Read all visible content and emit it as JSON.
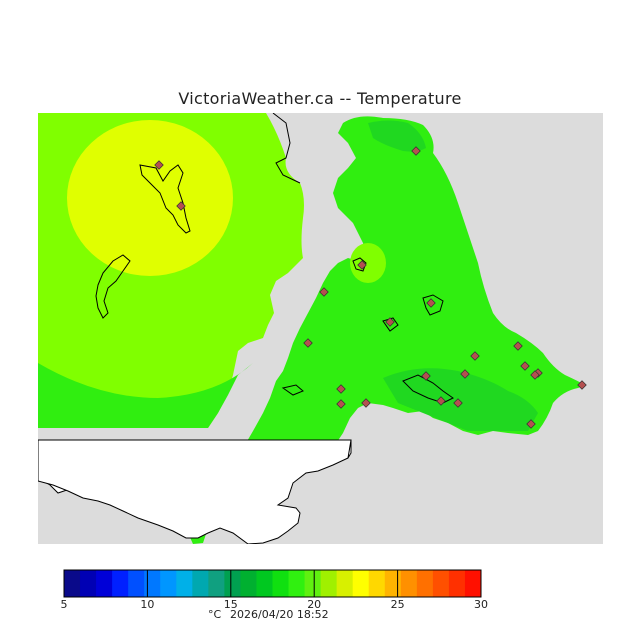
{
  "title": "VictoriaWeather.ca -- Temperature",
  "legend": {
    "unit": "°C",
    "timestamp": "2026/04/20 18:52",
    "ticks": [
      "5",
      "10",
      "15",
      "20",
      "25",
      "30"
    ],
    "range": [
      5,
      30
    ],
    "colors": [
      "#0a0a8a",
      "#0000b4",
      "#0000d8",
      "#0020ff",
      "#0050ff",
      "#0078ff",
      "#0096ff",
      "#00b0e8",
      "#00a8b0",
      "#10a080",
      "#00a050",
      "#00b030",
      "#00c820",
      "#10e010",
      "#30f010",
      "#60f010",
      "#a0f000",
      "#d8f000",
      "#ffff00",
      "#ffd800",
      "#ffb400",
      "#ff9000",
      "#ff7000",
      "#ff5000",
      "#ff3000",
      "#ff1000"
    ]
  },
  "map": {
    "colors": {
      "no_data": "#dcdcdc",
      "land_unshaded": "#ffffff",
      "temp_20_21": "#80ff00",
      "temp_21_22": "#e0ff00",
      "temp_19_20": "#30ee10",
      "temp_18_19": "#20e020",
      "station": "#b45050"
    },
    "stations_count": 22
  }
}
